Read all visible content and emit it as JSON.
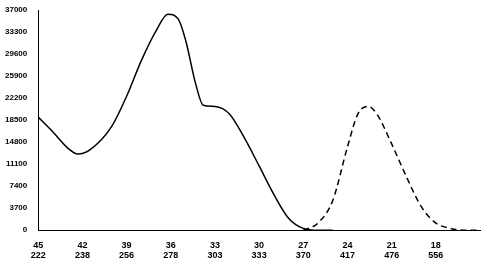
{
  "chart_data": {
    "type": "line",
    "xlim": [
      45,
      15
    ],
    "xticks": [
      {
        "value": 45,
        "label": [
          "45",
          "222"
        ]
      },
      {
        "value": 42,
        "label": [
          "42",
          "238"
        ]
      },
      {
        "value": 39,
        "label": [
          "39",
          "256"
        ]
      },
      {
        "value": 36,
        "label": [
          "36",
          "278"
        ]
      },
      {
        "value": 33,
        "label": [
          "33",
          "303"
        ]
      },
      {
        "value": 30,
        "label": [
          "30",
          "333"
        ]
      },
      {
        "value": 27,
        "label": [
          "27",
          "370"
        ]
      },
      {
        "value": 24,
        "label": [
          "24",
          "417"
        ]
      },
      {
        "value": 21,
        "label": [
          "21",
          "476"
        ]
      },
      {
        "value": 18,
        "label": [
          "18",
          "556"
        ]
      }
    ],
    "ylim": [
      0,
      37000
    ],
    "yticks": [
      0,
      3700,
      7400,
      11100,
      14800,
      18500,
      22200,
      25900,
      29600,
      33300,
      37000
    ],
    "grid": false,
    "series": [
      {
        "color": "#000000",
        "line_style": "solid",
        "x": [
          45,
          44,
          43,
          42.3,
          41.5,
          40,
          39,
          38,
          37,
          36.2,
          35.5,
          35,
          34.3,
          33.8,
          33,
          32,
          31,
          30,
          29,
          28,
          27,
          26,
          25
        ],
        "values": [
          19000,
          16500,
          13800,
          12800,
          13500,
          17500,
          22500,
          28500,
          33500,
          36300,
          35500,
          32000,
          24500,
          21000,
          20800,
          19500,
          15500,
          10800,
          6000,
          2000,
          300,
          0,
          0
        ]
      },
      {
        "color": "#000000",
        "line_style": "dashed",
        "x": [
          27,
          26,
          25,
          24,
          23.3,
          22.6,
          22,
          21,
          20,
          19,
          18,
          17,
          16,
          15
        ],
        "values": [
          0,
          1200,
          5000,
          14000,
          19500,
          20800,
          19500,
          14500,
          9000,
          4000,
          1200,
          300,
          0,
          0
        ]
      }
    ]
  }
}
